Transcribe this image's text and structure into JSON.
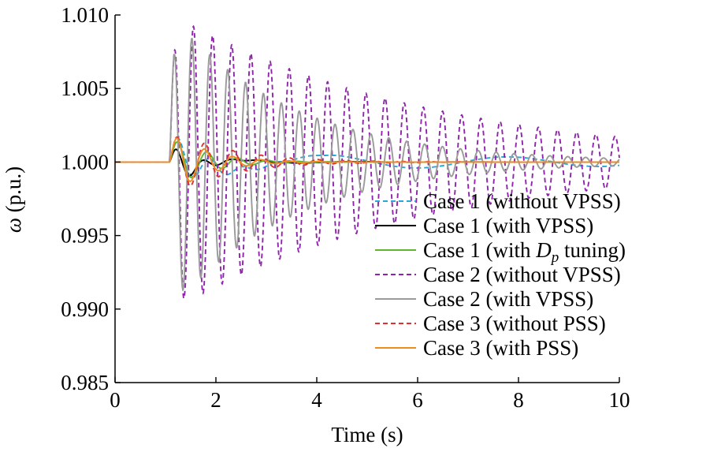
{
  "chart_data": {
    "type": "line",
    "xlabel": "Time (s)",
    "ylabel_symbol": "ω",
    "ylabel_unit": " (p.u.)",
    "xlim": [
      0,
      10
    ],
    "ylim": [
      0.985,
      1.01
    ],
    "xticks": [
      0,
      2,
      4,
      6,
      8,
      10
    ],
    "xtick_labels": [
      "0",
      "2",
      "4",
      "6",
      "8",
      "10"
    ],
    "yticks": [
      0.985,
      0.99,
      0.995,
      1.0,
      1.005,
      1.01
    ],
    "ytick_labels": [
      "0.985",
      "0.990",
      "0.995",
      "1.000",
      "1.005",
      "1.010"
    ],
    "grid": false,
    "legend_position": "inside-right",
    "disturbance_time": 1.08,
    "t_end": 10,
    "series": [
      {
        "name": "Case 1 (without VPSS)",
        "color": "#2AA7D6",
        "dash": "dashed",
        "model": {
          "t0": 1.08,
          "A": 0.0021,
          "ramp": 0.1,
          "decay": 1.6,
          "period": 0.65,
          "phase": 0.0,
          "slow": [
            {
              "a": 0.0006,
              "period": 3.6,
              "decay": 0.08,
              "phase": 2.4
            }
          ]
        }
      },
      {
        "name": "Case 1 (with VPSS)",
        "color": "#000000",
        "dash": "solid",
        "model": {
          "t0": 1.08,
          "A": 0.0017,
          "ramp": 0.1,
          "decay": 2.4,
          "period": 0.55,
          "phase": 0.0,
          "slow": [
            {
              "a": 0.0004,
              "period": 2.2,
              "decay": 0.7,
              "phase": 3.4
            }
          ]
        }
      },
      {
        "name": "Case 1 (with D_p tuning)",
        "name_prefix": "Case 1 (with ",
        "name_symbol": "D",
        "name_sub": "p",
        "name_suffix": " tuning)",
        "color": "#5DB530",
        "dash": "solid",
        "model": {
          "t0": 1.08,
          "A": 0.0021,
          "ramp": 0.12,
          "decay": 1.5,
          "period": 0.6,
          "phase": 0.0
        }
      },
      {
        "name": "Case 2 (without VPSS)",
        "color": "#8E24AA",
        "dash": "dashed",
        "model": {
          "t0": 1.08,
          "A": 0.0102,
          "ramp": 0.1,
          "decay": 0.2,
          "period": 0.38,
          "phase": 0.0
        }
      },
      {
        "name": "Case 2 (with VPSS)",
        "color": "#9A9A9A",
        "dash": "solid",
        "model": {
          "t0": 1.08,
          "A": 0.0102,
          "ramp": 0.1,
          "decay": 0.42,
          "period": 0.355,
          "phase": 0.0
        }
      },
      {
        "name": "Case 3 (without PSS)",
        "color": "#E03030",
        "dash": "dashed",
        "model": {
          "t0": 1.08,
          "A": 0.0024,
          "ramp": 0.12,
          "decay": 0.9,
          "period": 0.56,
          "phase": 0.0
        }
      },
      {
        "name": "Case 3 (with PSS)",
        "color": "#F08C1E",
        "dash": "solid",
        "model": {
          "t0": 1.08,
          "A": 0.0025,
          "ramp": 0.12,
          "decay": 1.5,
          "period": 0.56,
          "phase": 0.0
        }
      }
    ]
  }
}
